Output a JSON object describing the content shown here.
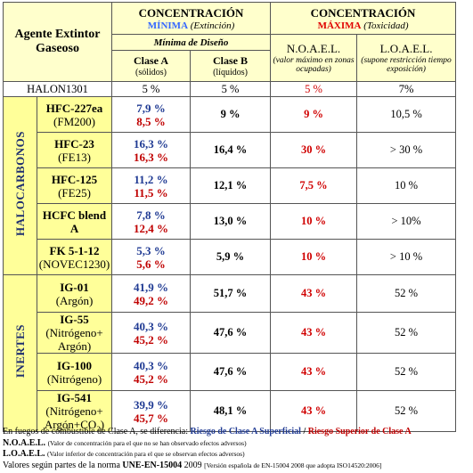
{
  "header": {
    "agent": "Agente Extintor Gaseoso",
    "min_title": "CONCENTRACIÓN",
    "min_word": "MÍNIMA",
    "min_sub": "(Extinción)",
    "max_title": "CONCENTRACIÓN",
    "max_word": "MÁXIMA",
    "max_sub": "(Toxicidad)",
    "design": "Mínima de Diseño",
    "class_a": "Clase A",
    "class_a_sub": "(sólidos)",
    "class_b": "Clase B",
    "class_b_sub": "(líquidos)",
    "noael": "N.O.A.E.L.",
    "noael_sub": "(valor máximo en zonas ocupadas)",
    "loael": "L.O.A.E.L.",
    "loael_sub": "(supone restricción tiempo exposición)"
  },
  "halon": {
    "name": "HALON1301",
    "a": "5 %",
    "b": "5 %",
    "noael": "5 %",
    "loael": "7%"
  },
  "groups": [
    {
      "label": "HALOCARBONOS",
      "rows": [
        {
          "name": "HFC-227ea",
          "alt": "(FM200)",
          "a_sup": "7,9 %",
          "a_risk": "8,5 %",
          "b": "9 %",
          "noael": "9 %",
          "loael": "10,5 %"
        },
        {
          "name": "HFC-23",
          "alt": "(FE13)",
          "a_sup": "16,3 %",
          "a_risk": "16,3 %",
          "b": "16,4 %",
          "noael": "30 %",
          "loael": "> 30 %"
        },
        {
          "name": "HFC-125",
          "alt": "(FE25)",
          "a_sup": "11,2 %",
          "a_risk": "11,5 %",
          "b": "12,1 %",
          "noael": "7,5 %",
          "loael": "10 %"
        },
        {
          "name": "HCFC blend A",
          "a_sup": "7,8 %",
          "a_risk": "12,4 %",
          "b": "13,0 %",
          "noael": "10 %",
          "loael": "> 10%"
        },
        {
          "name": "FK 5-1-12",
          "alt": "(NOVEC1230)",
          "a_sup": "5,3 %",
          "a_risk": "5,6 %",
          "b": "5,9 %",
          "noael": "10 %",
          "loael": "> 10 %"
        }
      ]
    },
    {
      "label": "INERTES",
      "rows": [
        {
          "name": "IG-01",
          "alt": "(Argón)",
          "a_sup": "41,9 %",
          "a_risk": "49,2 %",
          "b": "51,7 %",
          "noael": "43 %",
          "loael": "52 %"
        },
        {
          "name": "IG-55",
          "alt": "(Nitrógeno+ Argón)",
          "a_sup": "40,3 %",
          "a_risk": "45,2 %",
          "b": "47,6 %",
          "noael": "43 %",
          "loael": "52 %"
        },
        {
          "name": "IG-100",
          "alt": "(Nitrógeno)",
          "a_sup": "40,3 %",
          "a_risk": "45,2 %",
          "b": "47,6 %",
          "noael": "43 %",
          "loael": "52 %"
        },
        {
          "name": "IG-541",
          "alt": "(Nitrógeno+ Argón+CO₂)",
          "a_sup": "39,9 %",
          "a_risk": "45,7 %",
          "b": "48,1 %",
          "noael": "43 %",
          "loael": "52 %"
        }
      ]
    }
  ],
  "footer": {
    "line1": "En fuegos de combustible de Clase A, se diferencia: ",
    "superficial": "Riesgo de Clase A Superficial",
    "sep": " / ",
    "superior": "Riesgo Superior de Clase A",
    "noael": "N.O.A.E.L.",
    "noael_def": "(Valor de concentración para el que no se han observado efectos adversos)",
    "loael": "L.O.A.E.L.",
    "loael_def": "(Valor inferior de concentración para el que se observan efectos adversos)",
    "norm_text": "Valores según partes de la norma ",
    "norm": "UNE-EN-15004",
    "year": "2009",
    "version": "[Versión española de EN-15004 2008 que adopta ISO14520:2006]"
  }
}
